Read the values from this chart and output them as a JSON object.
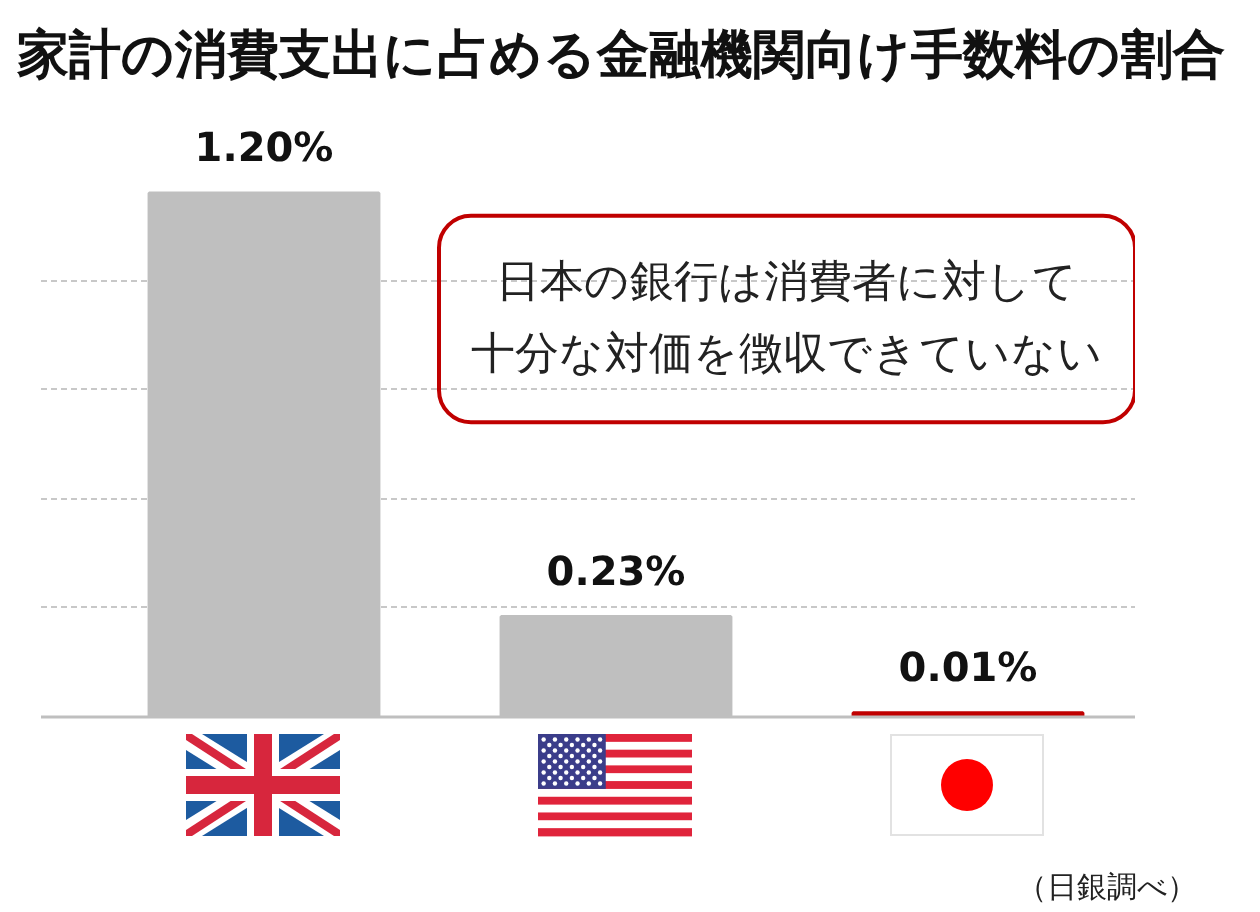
{
  "chart_data": {
    "type": "bar",
    "title": "家計の消費支出に占める金融機関向け手数料の割合",
    "categories": [
      null,
      null,
      null
    ],
    "values": [
      1.2,
      0.23,
      0.01
    ],
    "colors": [
      "#bfbfbf",
      "#bfbfbf",
      "#c00000"
    ],
    "value_labels": [
      "1.20%",
      "0.23%",
      "0.01%"
    ],
    "yticks": [
      {
        "value": 0.25,
        "label": null
      },
      {
        "value": 0.5,
        "label": null
      },
      {
        "value": 0.75,
        "label": null
      },
      {
        "value": 1.0,
        "label": null
      }
    ],
    "grid": "y",
    "tick_labels": false,
    "annotations": [
      "日本の銀行は消費者に対して十分な対価を徴収できていない",
      "（日銀調べ）"
    ]
  }
}
